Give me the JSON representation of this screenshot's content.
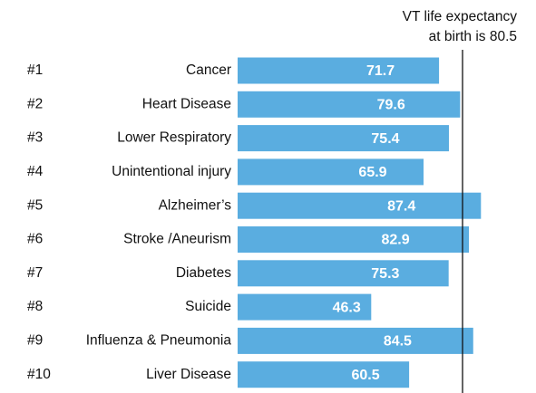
{
  "chart_data": {
    "type": "bar",
    "orientation": "horizontal",
    "ranks": [
      "#1",
      "#2",
      "#3",
      "#4",
      "#5",
      "#6",
      "#7",
      "#8",
      "#9",
      "#10"
    ],
    "categories": [
      "Cancer",
      "Heart Disease",
      "Lower Respiratory",
      "Unintentional injury",
      "Alzheimer’s",
      "Stroke /Aneurism",
      "Diabetes",
      "Suicide",
      "Influenza & Pneumonia",
      "Liver Disease"
    ],
    "values": [
      71.7,
      79.6,
      75.4,
      65.9,
      87.4,
      82.9,
      75.3,
      46.3,
      84.5,
      60.5
    ],
    "color": "#5aade0",
    "xlim": [
      0,
      100
    ],
    "reference_line": {
      "value": 80.5,
      "annotation": [
        "VT life expectancy",
        "at birth is 80.5"
      ]
    }
  }
}
